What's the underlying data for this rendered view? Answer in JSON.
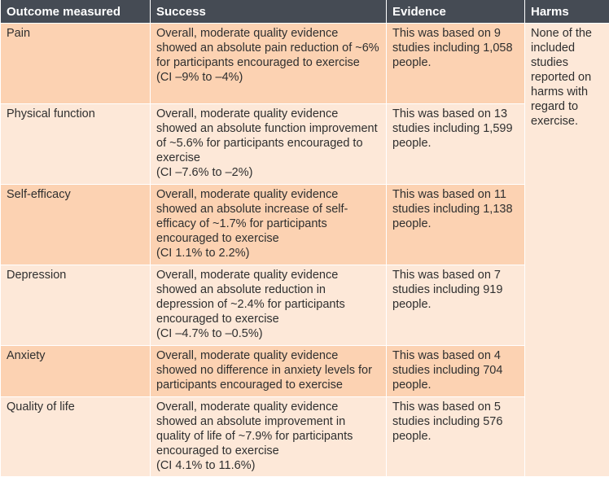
{
  "headers": [
    "Outcome measured",
    "Success",
    "Evidence",
    "Harms"
  ],
  "rows": [
    {
      "outcome": "Pain",
      "success": "Overall, moderate quality evidence showed an absolute pain reduction of ~6% for participants encouraged to exercise",
      "ci": "(CI –9% to –4%)",
      "evidence": "This was based on 9 studies including 1,058 people."
    },
    {
      "outcome": "Physical function",
      "success": "Overall, moderate quality evidence showed an absolute function improvement of ~5.6% for participants encouraged to exercise",
      "ci": "(CI –7.6% to –2%)",
      "evidence": "This was based on 13 studies including 1,599 people."
    },
    {
      "outcome": "Self-efficacy",
      "success": "Overall, moderate quality evidence showed an absolute increase of self-efficacy of ~1.7% for participants encouraged to exercise",
      "ci": "(CI 1.1% to 2.2%)",
      "evidence": "This was based on 11 studies including 1,138 people."
    },
    {
      "outcome": "Depression",
      "success": "Overall, moderate quality evidence showed an absolute reduction in depression of ~2.4% for participants encouraged to exercise",
      "ci": "(CI –4.7% to –0.5%)",
      "evidence": "This was based on 7 studies including 919 people."
    },
    {
      "outcome": "Anxiety",
      "success": "Overall, moderate quality evidence showed no difference in anxiety levels for participants encouraged to exercise",
      "ci": "",
      "evidence": "This was based on 4 studies including 704 people."
    },
    {
      "outcome": "Quality of life",
      "success": "Overall, moderate quality evidence showed an absolute improvement in quality of life of ~7.9% for participants encouraged to exercise",
      "ci": "(CI 4.1% to 11.6%)",
      "evidence": "This was based on 5 studies including 576 people."
    }
  ],
  "harms": "None of the included studies reported on harms with regard to exercise.",
  "colors": {
    "header": "#454b54",
    "row_dark": "#fcd2b2",
    "row_light": "#fde8d8"
  }
}
